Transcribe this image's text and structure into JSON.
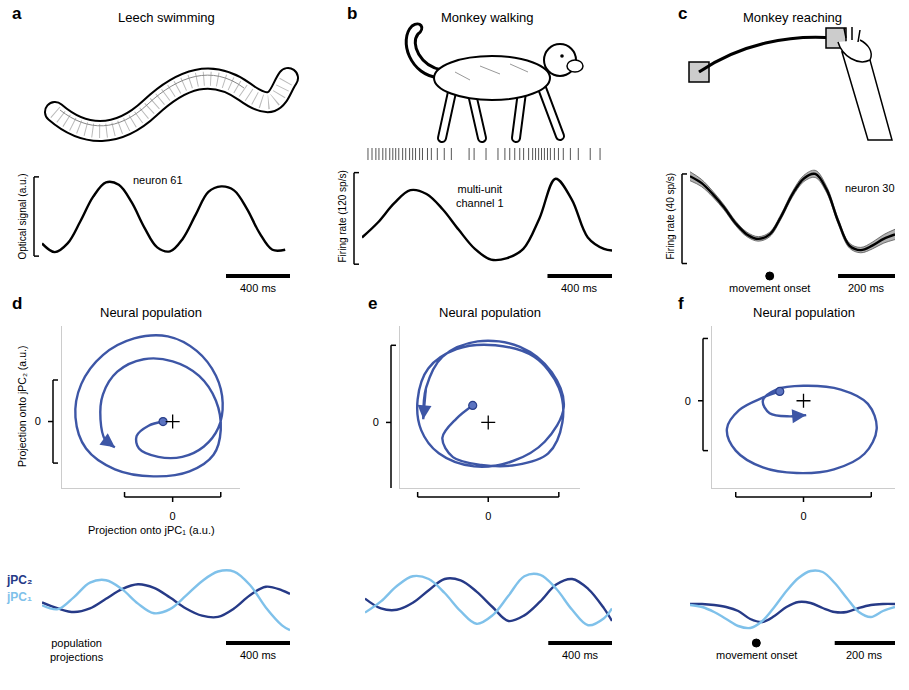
{
  "chart_data": [
    {
      "type": "line",
      "label": "a",
      "title": "Leech swimming",
      "ylabel": "Optical signal (a.u.)",
      "x": [
        0,
        80,
        160,
        240,
        320,
        400,
        480,
        560,
        640,
        720,
        800,
        880,
        960,
        1040,
        1120,
        1200,
        1280,
        1360,
        1440,
        1520
      ],
      "series": [
        {
          "name": "neuron 61",
          "color": "#000000",
          "values": [
            0.16,
            0.05,
            0.16,
            0.44,
            0.75,
            0.93,
            0.9,
            0.68,
            0.36,
            0.11,
            0.06,
            0.22,
            0.52,
            0.81,
            0.88,
            0.83,
            0.6,
            0.29,
            0.08,
            0.08
          ]
        }
      ],
      "xlim": [
        0,
        1550
      ],
      "ylim": [
        -0.15,
        1.15
      ],
      "tick_labels": false,
      "scalebar_x": {
        "value": 400,
        "label": "400 ms"
      },
      "scalebar_y": [
        0,
        1
      ]
    },
    {
      "type": "line",
      "label": "b",
      "title": "Monkey walking",
      "ylabel": "Firing rate (120 sp/s)",
      "x": [
        0,
        100,
        200,
        300,
        400,
        500,
        600,
        700,
        800,
        900,
        1000,
        1100,
        1200,
        1300,
        1400,
        1500,
        1550
      ],
      "series": [
        {
          "name": "multi-unit channel 1",
          "color": "#000000",
          "values": [
            35,
            55,
            80,
            97,
            92,
            72,
            45,
            20,
            6,
            8,
            20,
            60,
            112,
            85,
            35,
            20,
            18
          ]
        }
      ],
      "spikes": [
        37,
        62,
        86,
        105,
        129,
        148,
        172,
        191,
        209,
        228,
        252,
        271,
        295,
        314,
        332,
        357,
        375,
        406,
        430,
        467,
        510,
        554,
        664,
        695,
        769,
        843,
        886,
        916,
        947,
        978,
        1002,
        1033,
        1058,
        1076,
        1095,
        1113,
        1131,
        1150,
        1168,
        1193,
        1218,
        1248,
        1292,
        1341,
        1415,
        1476
      ],
      "xlim": [
        0,
        1550
      ],
      "ylim": [
        -5,
        130
      ],
      "tick_labels": false,
      "scalebar_x": {
        "value": 400,
        "label": "400 ms"
      },
      "scalebar_y": [
        0,
        120
      ]
    },
    {
      "type": "line",
      "label": "c",
      "title": "Monkey reaching",
      "ylabel": "Firing rate (40 sp/s)",
      "x": [
        -280,
        -240,
        -200,
        -160,
        -120,
        -80,
        -40,
        0,
        40,
        80,
        120,
        160,
        200,
        240,
        280,
        320,
        360,
        400,
        440
      ],
      "series": [
        {
          "name": "neuron 30",
          "color": "#000000",
          "values": [
            39,
            36,
            31,
            25,
            18,
            13,
            11,
            13,
            21,
            31,
            38,
            40,
            33,
            19,
            8,
            6,
            8,
            11,
            13
          ],
          "sem": [
            2.0,
            1.6,
            1.3,
            1.1,
            1.0,
            1.0,
            1.0,
            1.0,
            1.1,
            1.2,
            1.4,
            1.6,
            1.4,
            1.2,
            1.1,
            1.2,
            1.5,
            1.9,
            2.3
          ]
        }
      ],
      "movement_onset": {
        "value": 0,
        "label": "movement onset"
      },
      "xlim": [
        -280,
        440
      ],
      "ylim": [
        -2,
        44
      ],
      "tick_labels": false,
      "scalebar_x": {
        "value": 200,
        "label": "200 ms"
      },
      "scalebar_y": [
        0,
        40
      ]
    },
    {
      "type": "trajectory",
      "label": "d",
      "title": "Neural population",
      "xlabel": "Projection onto jPC₁ (a.u.)",
      "ylabel": "Projection onto jPC₂ (a.u.)",
      "x": [
        -0.2,
        -0.5,
        -0.75,
        -0.7,
        -0.3,
        0.2,
        0.65,
        0.95,
        1.04,
        0.9,
        0.5,
        -0.1,
        -0.8,
        -1.45,
        -1.9,
        -2.02,
        -1.8,
        -1.2,
        -0.4,
        0.35,
        0.85,
        1.0,
        0.9,
        0.55,
        0.0,
        -0.6,
        -1.15,
        -1.45,
        -1.5,
        -1.4,
        -1.2
      ],
      "y": [
        0,
        -0.1,
        -0.35,
        -0.65,
        -0.85,
        -0.85,
        -0.6,
        -0.15,
        0.45,
        1.1,
        1.7,
        2.05,
        2.0,
        1.6,
        0.9,
        0.1,
        -0.65,
        -1.15,
        -1.32,
        -1.2,
        -0.8,
        -0.2,
        0.5,
        1.1,
        1.45,
        1.5,
        1.2,
        0.65,
        0.05,
        -0.45,
        -0.62
      ],
      "color": "#3d56a6",
      "marker": "circle",
      "origin": [
        0,
        0
      ],
      "xlim": [
        -2.3,
        1.4
      ],
      "ylim": [
        -1.6,
        2.3
      ],
      "xticks": [
        0
      ],
      "yticks": [
        0
      ],
      "scalebar_x": [
        -1,
        1
      ],
      "scalebar_y": [
        -1,
        1
      ]
    },
    {
      "type": "trajectory",
      "label": "e",
      "title": "Neural population",
      "x": [
        -0.22,
        -0.45,
        -0.65,
        -0.5,
        -0.1,
        0.4,
        0.85,
        1.05,
        1.0,
        0.65,
        0.1,
        -0.45,
        -0.85,
        -1.0,
        -0.95,
        -0.7,
        -0.2,
        0.35,
        0.8,
        1.07,
        0.9,
        0.45,
        -0.15,
        -0.65,
        -0.88,
        -0.92
      ],
      "y": [
        0.22,
        0.05,
        -0.2,
        -0.45,
        -0.55,
        -0.55,
        -0.4,
        0.0,
        0.45,
        0.85,
        1.0,
        0.95,
        0.7,
        0.3,
        -0.1,
        -0.4,
        -0.57,
        -0.5,
        -0.25,
        0.2,
        0.65,
        0.98,
        1.05,
        0.85,
        0.45,
        0.04
      ],
      "color": "#3d56a6",
      "marker": "circle",
      "origin": [
        0,
        0
      ],
      "xlim": [
        -1.25,
        1.3
      ],
      "ylim": [
        -0.85,
        1.25
      ],
      "xticks": [
        0
      ],
      "yticks": [
        0
      ],
      "scalebar_x": [
        -1,
        1
      ],
      "scalebar_y": [
        -1,
        1
      ]
    },
    {
      "type": "trajectory",
      "label": "f",
      "title": "Neural population",
      "x": [
        -0.35,
        -0.6,
        -0.95,
        -1.13,
        -1.0,
        -0.6,
        -0.1,
        0.45,
        0.9,
        1.08,
        0.95,
        0.55,
        0.0,
        -0.4,
        -0.6,
        -0.5,
        -0.2,
        0.04
      ],
      "y": [
        0.15,
        0.05,
        -0.15,
        -0.45,
        -0.8,
        -1.07,
        -1.16,
        -1.1,
        -0.85,
        -0.45,
        -0.05,
        0.18,
        0.24,
        0.18,
        0.0,
        -0.2,
        -0.25,
        -0.23
      ],
      "color": "#3d56a6",
      "marker": "circle",
      "origin": [
        0,
        0
      ],
      "xlim": [
        -1.35,
        1.35
      ],
      "ylim": [
        -1.4,
        1.2
      ],
      "xticks": [
        0
      ],
      "yticks": [
        0
      ],
      "scalebar_x": [
        -1,
        1
      ],
      "scalebar_y": [
        -0.8,
        1.0
      ]
    },
    {
      "type": "line",
      "x": [
        0,
        100,
        200,
        300,
        400,
        500,
        600,
        700,
        800,
        900,
        1000,
        1100,
        1200,
        1300,
        1400,
        1500,
        1550
      ],
      "series": [
        {
          "name": "jPC₂",
          "color": "#263a87",
          "values": [
            -0.05,
            -0.3,
            -0.45,
            -0.3,
            0.1,
            0.5,
            0.7,
            0.55,
            0.15,
            -0.3,
            -0.6,
            -0.65,
            -0.3,
            0.25,
            0.6,
            0.45,
            0.3
          ]
        },
        {
          "name": "jPC₁",
          "color": "#7fc1ea",
          "values": [
            -0.17,
            -0.33,
            0.17,
            0.77,
            0.87,
            0.5,
            -0.1,
            -0.5,
            -0.33,
            0.23,
            0.83,
            1.23,
            1.23,
            0.67,
            -0.27,
            -1.0,
            -1.2
          ]
        }
      ],
      "annotation": "population projections",
      "xlim": [
        0,
        1550
      ],
      "ylim": [
        -1.4,
        1.5
      ],
      "tick_labels": false,
      "scalebar_x": {
        "value": 400,
        "label": "400 ms"
      }
    },
    {
      "type": "line",
      "x": [
        0,
        100,
        200,
        300,
        400,
        500,
        600,
        700,
        800,
        900,
        1000,
        1100,
        1200,
        1300,
        1400,
        1500,
        1550
      ],
      "series": [
        {
          "color": "#263a87",
          "values": [
            0.0,
            -0.35,
            -0.4,
            -0.15,
            0.3,
            0.7,
            0.65,
            0.25,
            -0.3,
            -0.8,
            -0.6,
            -0.1,
            0.5,
            0.7,
            0.35,
            -0.35,
            -0.8
          ]
        },
        {
          "color": "#7fc1ea",
          "values": [
            -0.5,
            -0.1,
            0.45,
            0.8,
            0.7,
            0.2,
            -0.45,
            -0.9,
            -0.6,
            0.1,
            0.8,
            0.85,
            0.35,
            -0.4,
            -0.95,
            -0.7,
            -0.35
          ]
        }
      ],
      "xlim": [
        0,
        1550
      ],
      "ylim": [
        -1.3,
        1.2
      ],
      "tick_labels": false,
      "scalebar_x": {
        "value": 400,
        "label": "400 ms"
      }
    },
    {
      "type": "line",
      "x": [
        -220,
        -180,
        -140,
        -100,
        -60,
        -20,
        20,
        60,
        100,
        140,
        180,
        220,
        260,
        300,
        340,
        380,
        420,
        460
      ],
      "series": [
        {
          "color": "#263a87",
          "values": [
            0.05,
            0.05,
            0.0,
            -0.1,
            -0.3,
            -0.7,
            -0.85,
            -0.55,
            -0.1,
            0.15,
            0.1,
            -0.15,
            -0.35,
            -0.35,
            -0.15,
            0.0,
            0.05,
            0.05
          ]
        },
        {
          "color": "#7fc1ea",
          "values": [
            0.0,
            -0.1,
            -0.35,
            -0.7,
            -1.05,
            -1.15,
            -0.8,
            -0.1,
            0.7,
            1.35,
            1.7,
            1.65,
            1.1,
            0.35,
            -0.35,
            -0.6,
            -0.3,
            -0.1
          ]
        }
      ],
      "movement_onset": {
        "value": 0,
        "label": "movement onset"
      },
      "xlim": [
        -220,
        460
      ],
      "ylim": [
        -1.5,
        2.0
      ],
      "tick_labels": false,
      "scalebar_x": {
        "value": 200,
        "label": "200 ms"
      }
    }
  ]
}
